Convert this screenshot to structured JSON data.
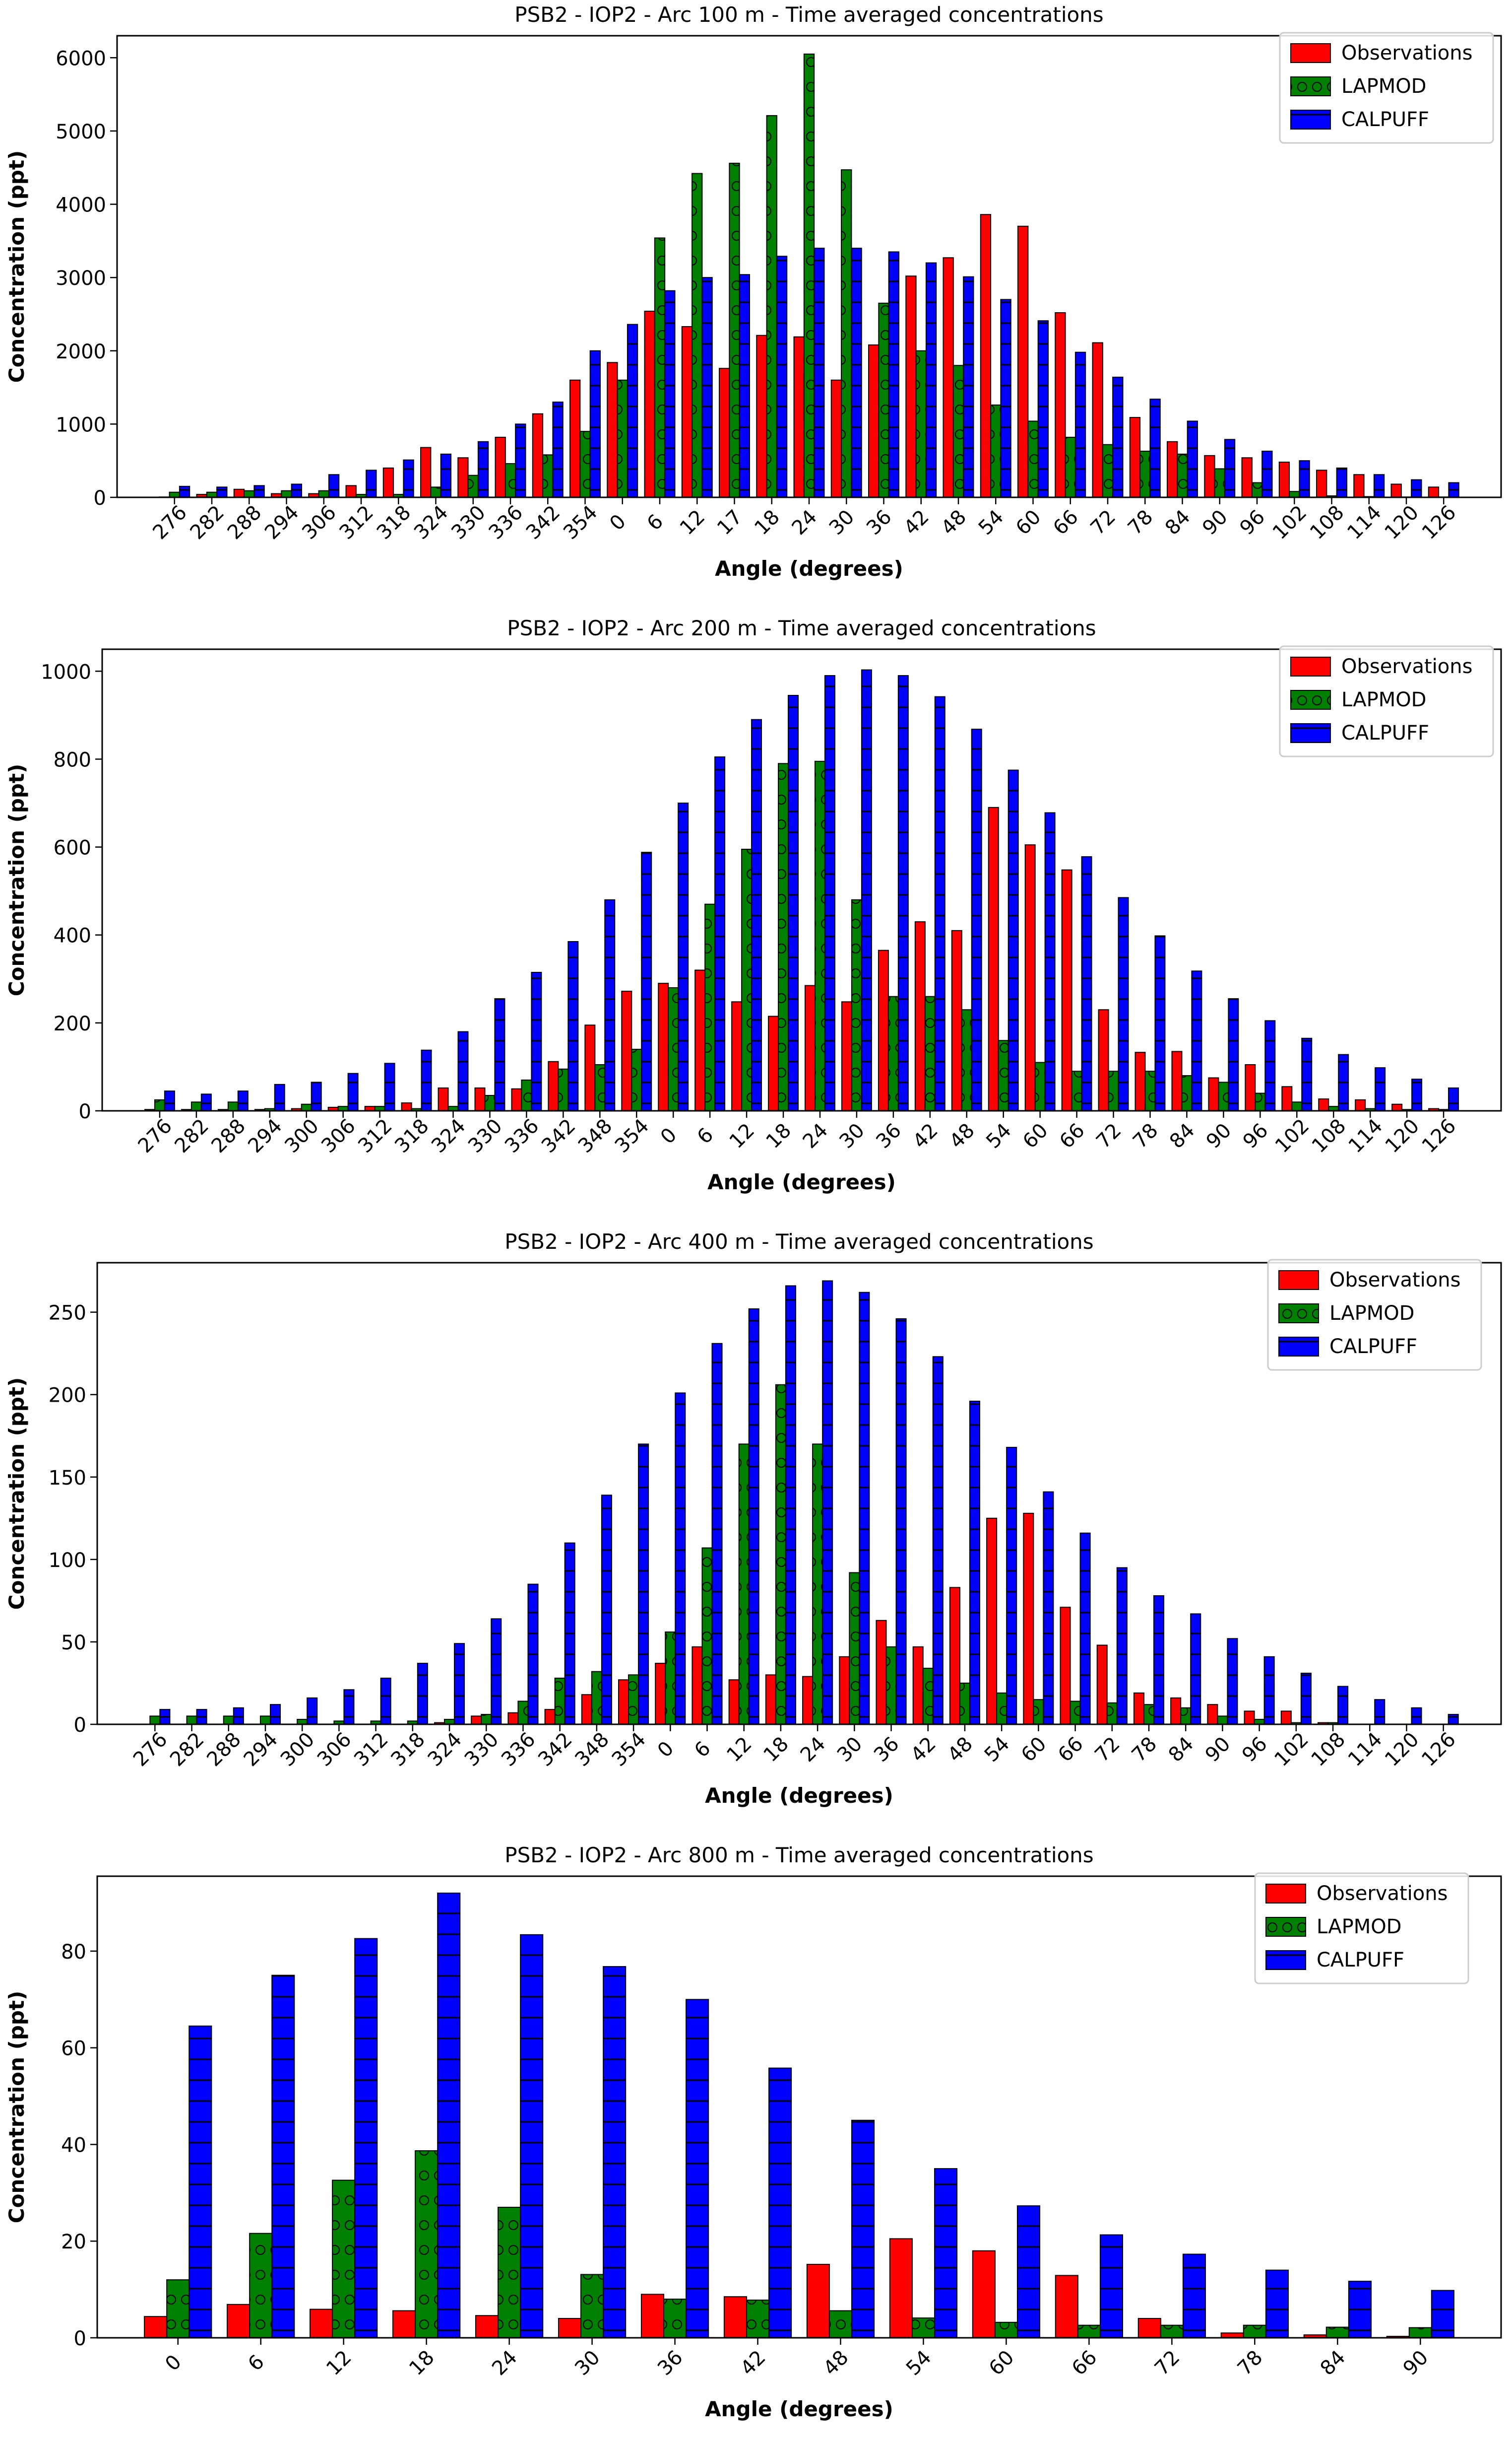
{
  "legend_labels": [
    "Observations",
    "LAPMOD",
    "CALPUFF"
  ],
  "colors": {
    "observations": "#ff0000",
    "lapmod": "#008000",
    "calpuff": "#0000ff"
  },
  "chart_data": [
    {
      "type": "bar",
      "title": "PSB2 - IOP2 - Arc 100 m - Time averaged concentrations",
      "xlabel": "Angle (degrees)",
      "ylabel": "Concentration (ppt)",
      "ylim": [
        0,
        6300
      ],
      "yticks": [
        0,
        1000,
        2000,
        3000,
        4000,
        5000,
        6000
      ],
      "legend_position": "top-right",
      "categories": [
        "276",
        "282",
        "288",
        "294",
        "306",
        "312",
        "318",
        "324",
        "330",
        "336",
        "342",
        "354",
        "0",
        "6",
        "12",
        "17",
        "18",
        "24",
        "30",
        "36",
        "42",
        "48",
        "54",
        "60",
        "66",
        "72",
        "78",
        "84",
        "90",
        "96",
        "102",
        "108",
        "114",
        "120",
        "126"
      ],
      "series": [
        {
          "name": "Observations",
          "values": [
            5,
            40,
            110,
            50,
            50,
            160,
            400,
            680,
            540,
            820,
            1140,
            1600,
            1840,
            2540,
            2330,
            1760,
            2210,
            2190,
            1600,
            2080,
            3020,
            3270,
            3860,
            3700,
            2520,
            2110,
            1090,
            760,
            570,
            540,
            480,
            370,
            310,
            180,
            140
          ]
        },
        {
          "name": "LAPMOD",
          "values": [
            70,
            70,
            90,
            90,
            90,
            40,
            40,
            140,
            300,
            460,
            580,
            900,
            1600,
            3540,
            4420,
            4560,
            5210,
            6050,
            4470,
            2650,
            2000,
            1800,
            1260,
            1040,
            820,
            720,
            630,
            590,
            390,
            200,
            80,
            20,
            10,
            5,
            5
          ]
        },
        {
          "name": "CALPUFF",
          "values": [
            150,
            140,
            160,
            180,
            310,
            370,
            510,
            590,
            760,
            1000,
            1300,
            2000,
            2360,
            2820,
            3000,
            3040,
            3290,
            3400,
            3400,
            3350,
            3200,
            3010,
            2700,
            2410,
            1980,
            1640,
            1340,
            1040,
            790,
            630,
            500,
            400,
            310,
            240,
            200
          ]
        }
      ]
    },
    {
      "type": "bar",
      "title": "PSB2 - IOP2 - Arc 200 m - Time averaged concentrations",
      "xlabel": "Angle (degrees)",
      "ylabel": "Concentration (ppt)",
      "ylim": [
        0,
        1050
      ],
      "yticks": [
        0,
        200,
        400,
        600,
        800,
        1000
      ],
      "legend_position": "top-right",
      "categories": [
        "276",
        "282",
        "288",
        "294",
        "300",
        "306",
        "312",
        "318",
        "324",
        "330",
        "336",
        "342",
        "348",
        "354",
        "0",
        "6",
        "12",
        "18",
        "24",
        "30",
        "36",
        "42",
        "48",
        "54",
        "60",
        "66",
        "72",
        "78",
        "84",
        "90",
        "96",
        "102",
        "108",
        "114",
        "120",
        "126"
      ],
      "series": [
        {
          "name": "Observations",
          "values": [
            3,
            3,
            3,
            3,
            5,
            8,
            10,
            18,
            52,
            52,
            50,
            112,
            195,
            272,
            290,
            320,
            248,
            215,
            285,
            248,
            365,
            430,
            410,
            690,
            605,
            548,
            230,
            133,
            135,
            75,
            105,
            55,
            27,
            25,
            15,
            5
          ]
        },
        {
          "name": "LAPMOD",
          "values": [
            25,
            20,
            20,
            5,
            15,
            10,
            10,
            5,
            10,
            35,
            70,
            95,
            105,
            140,
            280,
            470,
            595,
            790,
            795,
            480,
            260,
            260,
            230,
            160,
            110,
            90,
            90,
            90,
            80,
            65,
            40,
            20,
            10,
            5,
            3,
            3
          ]
        },
        {
          "name": "CALPUFF",
          "values": [
            45,
            38,
            45,
            60,
            65,
            85,
            108,
            138,
            180,
            255,
            315,
            385,
            480,
            588,
            700,
            805,
            890,
            945,
            990,
            1003,
            990,
            942,
            868,
            775,
            678,
            578,
            485,
            398,
            318,
            255,
            205,
            165,
            128,
            98,
            72,
            52
          ]
        }
      ]
    },
    {
      "type": "bar",
      "title": "PSB2 - IOP2 - Arc 400 m - Time averaged concentrations",
      "xlabel": "Angle (degrees)",
      "ylabel": "Concentration (ppt)",
      "ylim": [
        0,
        280
      ],
      "yticks": [
        0,
        50,
        100,
        150,
        200,
        250
      ],
      "legend_position": "top-right",
      "categories": [
        "276",
        "282",
        "288",
        "294",
        "300",
        "306",
        "312",
        "318",
        "324",
        "330",
        "336",
        "342",
        "348",
        "354",
        "0",
        "6",
        "12",
        "18",
        "24",
        "30",
        "36",
        "42",
        "48",
        "54",
        "60",
        "66",
        "72",
        "78",
        "84",
        "90",
        "96",
        "102",
        "108",
        "114",
        "120",
        "126"
      ],
      "series": [
        {
          "name": "Observations",
          "values": [
            0,
            0,
            0,
            0,
            0,
            0,
            0,
            0,
            1,
            5,
            7,
            9,
            18,
            27,
            37,
            47,
            27,
            30,
            29,
            41,
            63,
            47,
            83,
            125,
            128,
            71,
            48,
            19,
            16,
            12,
            8,
            8,
            1,
            0,
            0,
            0
          ]
        },
        {
          "name": "LAPMOD",
          "values": [
            5,
            5,
            5,
            5,
            3,
            2,
            2,
            2,
            3,
            6,
            14,
            28,
            32,
            30,
            56,
            107,
            170,
            206,
            170,
            92,
            47,
            34,
            25,
            19,
            15,
            14,
            13,
            12,
            10,
            5,
            3,
            1,
            1,
            0,
            0,
            0
          ]
        },
        {
          "name": "CALPUFF",
          "values": [
            9,
            9,
            10,
            12,
            16,
            21,
            28,
            37,
            49,
            64,
            85,
            110,
            139,
            170,
            201,
            231,
            252,
            266,
            269,
            262,
            246,
            223,
            196,
            168,
            141,
            116,
            95,
            78,
            67,
            52,
            41,
            31,
            23,
            15,
            10,
            6
          ]
        }
      ]
    },
    {
      "type": "bar",
      "title": "PSB2 - IOP2 - Arc 800 m - Time averaged concentrations",
      "xlabel": "Angle (degrees)",
      "ylabel": "Concentration (ppt)",
      "ylim": [
        0,
        95.5
      ],
      "yticks": [
        0,
        20,
        40,
        60,
        80
      ],
      "legend_position": "top-right",
      "categories": [
        "0",
        "6",
        "12",
        "18",
        "24",
        "30",
        "36",
        "42",
        "48",
        "54",
        "60",
        "66",
        "72",
        "78",
        "84",
        "90"
      ],
      "series": [
        {
          "name": "Observations",
          "values": [
            4.4,
            6.9,
            5.9,
            5.6,
            4.6,
            4.0,
            9.0,
            8.5,
            15.2,
            20.5,
            18.0,
            12.9,
            4.0,
            1.0,
            0.6,
            0.3
          ]
        },
        {
          "name": "LAPMOD",
          "values": [
            12.0,
            21.6,
            32.6,
            38.7,
            27.0,
            13.1,
            8.0,
            7.8,
            5.6,
            4.1,
            3.2,
            2.6,
            2.6,
            2.6,
            2.2,
            2.1
          ]
        },
        {
          "name": "CALPUFF",
          "values": [
            64.5,
            75.0,
            82.6,
            92.0,
            83.4,
            76.8,
            70.0,
            55.8,
            45.0,
            35.0,
            27.3,
            21.3,
            17.3,
            14.0,
            11.7,
            9.8
          ]
        }
      ]
    }
  ]
}
